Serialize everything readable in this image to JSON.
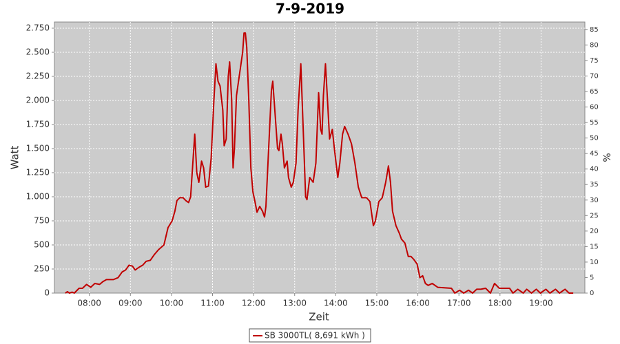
{
  "chart_data": {
    "type": "line",
    "title": "7-9-2019",
    "x_label": "Zeit",
    "y_label": "Watt",
    "y2_label": "%",
    "grid": true,
    "legend": "bottom",
    "xlim": [
      "07:09",
      "20:04"
    ],
    "xticks": [
      "08:00",
      "09:00",
      "10:00",
      "11:00",
      "12:00",
      "13:00",
      "14:00",
      "15:00",
      "16:00",
      "17:00",
      "18:00",
      "19:00"
    ],
    "ylim": [
      0,
      2814
    ],
    "yticks": [
      0,
      250,
      500,
      750,
      {
        "value": 1000,
        "label": "1.000"
      },
      {
        "value": 1250,
        "label": "1.250"
      },
      {
        "value": 1500,
        "label": "1.500"
      },
      {
        "value": 1750,
        "label": "1.750"
      },
      {
        "value": 2000,
        "label": "2.000"
      },
      {
        "value": 2250,
        "label": "2.250"
      },
      {
        "value": 2500,
        "label": "2.500"
      },
      {
        "value": 2750,
        "label": "2.750"
      }
    ],
    "y2lim": [
      0,
      87.4
    ],
    "y2ticks": [
      0,
      5,
      10,
      15,
      20,
      25,
      30,
      35,
      40,
      45,
      50,
      55,
      60,
      65,
      70,
      75,
      80,
      85
    ],
    "x": [
      "07:25",
      "07:28",
      "07:31",
      "07:35",
      "07:38",
      "07:45",
      "07:50",
      "07:56",
      "08:02",
      "08:08",
      "08:15",
      "08:20",
      "08:25",
      "08:35",
      "08:42",
      "08:48",
      "08:53",
      "08:58",
      "09:03",
      "09:07",
      "09:13",
      "09:18",
      "09:23",
      "09:29",
      "09:35",
      "09:41",
      "09:49",
      "09:55",
      "10:01",
      "10:05",
      "10:08",
      "10:12",
      "10:17",
      "10:21",
      "10:25",
      "10:28",
      "10:34",
      "10:37",
      "10:40",
      "10:44",
      "10:47",
      "10:50",
      "10:54",
      "10:58",
      "11:02",
      "11:05",
      "11:08",
      "11:11",
      "11:15",
      "11:17",
      "11:20",
      "11:23",
      "11:25",
      "11:28",
      "11:30",
      "11:32",
      "11:35",
      "11:40",
      "11:44",
      "11:46",
      "11:48",
      "11:50",
      "11:53",
      "11:56",
      "11:59",
      "12:02",
      "12:05",
      "12:09",
      "12:13",
      "12:16",
      "12:18",
      "12:22",
      "12:26",
      "12:28",
      "12:30",
      "12:33",
      "12:35",
      "12:37",
      "12:40",
      "12:42",
      "12:45",
      "12:49",
      "12:51",
      "12:55",
      "12:58",
      "13:02",
      "13:05",
      "13:09",
      "13:13",
      "13:16",
      "13:18",
      "13:22",
      "13:27",
      "13:31",
      "13:35",
      "13:38",
      "13:40",
      "13:42",
      "13:45",
      "13:48",
      "13:51",
      "13:55",
      "13:58",
      "14:03",
      "14:06",
      "14:10",
      "14:13",
      "14:18",
      "14:23",
      "14:28",
      "14:33",
      "14:38",
      "14:45",
      "14:50",
      "14:55",
      "14:58",
      "15:03",
      "15:08",
      "15:13",
      "15:17",
      "15:20",
      "15:23",
      "15:28",
      "15:33",
      "15:36",
      "15:41",
      "15:46",
      "15:50",
      "15:54",
      "15:59",
      "16:03",
      "16:07",
      "16:11",
      "16:15",
      "16:21",
      "16:29",
      "16:49",
      "16:54",
      "17:01",
      "17:07",
      "17:14",
      "17:20",
      "17:26",
      "17:32",
      "17:39",
      "17:46",
      "17:52",
      "17:59",
      "18:14",
      "18:19",
      "18:26",
      "18:34",
      "18:39",
      "18:46",
      "18:53",
      "18:59",
      "19:07",
      "19:13",
      "19:21",
      "19:27",
      "19:35",
      "19:41",
      "19:47"
    ],
    "series": [
      {
        "name": "SB 3000TL( 8,691 kWh )",
        "color": "#c00000",
        "values": [
          0,
          15,
          0,
          10,
          0,
          50,
          50,
          90,
          60,
          100,
          90,
          120,
          140,
          140,
          160,
          220,
          240,
          290,
          280,
          240,
          270,
          290,
          330,
          340,
          400,
          450,
          500,
          680,
          750,
          850,
          960,
          990,
          990,
          960,
          940,
          1000,
          1650,
          1250,
          1150,
          1370,
          1300,
          1100,
          1110,
          1400,
          2000,
          2380,
          2200,
          2150,
          1900,
          1530,
          1600,
          2250,
          2400,
          2000,
          1300,
          1500,
          2050,
          2300,
          2500,
          2700,
          2700,
          2550,
          2000,
          1300,
          1050,
          950,
          840,
          900,
          850,
          790,
          900,
          1500,
          2100,
          2200,
          2000,
          1700,
          1500,
          1480,
          1650,
          1550,
          1300,
          1370,
          1200,
          1100,
          1150,
          1350,
          1900,
          2380,
          1600,
          1000,
          970,
          1200,
          1150,
          1350,
          2080,
          1700,
          1650,
          2050,
          2380,
          2000,
          1600,
          1700,
          1500,
          1200,
          1350,
          1650,
          1730,
          1650,
          1550,
          1350,
          1100,
          990,
          990,
          950,
          700,
          750,
          950,
          990,
          1150,
          1320,
          1150,
          850,
          700,
          620,
          560,
          520,
          380,
          380,
          350,
          300,
          160,
          180,
          100,
          80,
          100,
          60,
          50,
          0,
          30,
          0,
          30,
          0,
          40,
          40,
          50,
          0,
          100,
          50,
          50,
          0,
          40,
          0,
          40,
          0,
          40,
          0,
          40,
          0,
          40,
          0,
          40,
          0,
          0
        ]
      }
    ]
  }
}
